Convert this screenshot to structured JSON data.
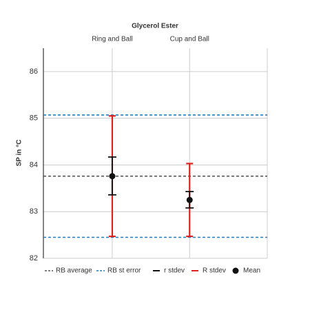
{
  "chart_data": {
    "type": "errorbar",
    "title": "Glycerol Ester",
    "y_label": "SP in °C",
    "categories": [
      "Ring and Ball",
      "Cup and Ball"
    ],
    "ylim": [
      82,
      86.5
    ],
    "yticks": [
      82,
      83,
      84,
      85,
      86
    ],
    "grid": true,
    "reference_lines": [
      {
        "name": "RB average",
        "color": "#555555",
        "values": [
          83.76
        ]
      },
      {
        "name": "RB st error",
        "color": "#1f7ec1",
        "values": [
          85.07,
          82.45
        ]
      }
    ],
    "error_bars": [
      {
        "name": "r stdev",
        "color": "#111111",
        "low": [
          83.36,
          83.08
        ],
        "high": [
          84.17,
          83.43
        ]
      },
      {
        "name": "R stdev",
        "color": "#e0201b",
        "low": [
          82.47,
          82.47
        ],
        "high": [
          85.05,
          84.03
        ]
      }
    ],
    "mean": {
      "name": "Mean",
      "color": "#111111",
      "values": [
        83.76,
        83.25
      ]
    },
    "legend": "bottom"
  }
}
